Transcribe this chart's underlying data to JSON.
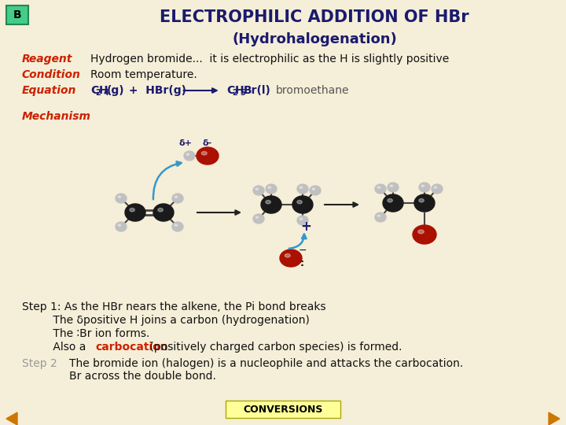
{
  "bg_color": "#f5eed8",
  "title": "ELECTROPHILIC ADDITION OF HBr",
  "subtitle": "(Hydrohalogenation)",
  "title_color": "#1a1a6e",
  "box_label": "B",
  "box_bg": "#44cc88",
  "box_fg": "#000000",
  "box_border": "#228855",
  "label_color": "#cc2200",
  "reagent_label": "Reagent",
  "reagent_text": "Hydrogen bromide...  it is electrophilic as the H is slightly positive",
  "condition_label": "Condition",
  "condition_text": "Room temperature.",
  "equation_label": "Equation",
  "mechanism_label": "Mechanism",
  "step1_line1": "Step 1: As the HBr nears the alkene, the Pi bond breaks",
  "step1_line2": "         The δpositive H joins a carbon (hydrogenation)",
  "step1_line3": "         The ∶Br ion forms.",
  "step1_line4_pre": "         Also a ",
  "step1_line4_red": "carbocation",
  "step1_line4_post": " (positively charged carbon species) is formed.",
  "step2_label": "Step 2",
  "step2_line1": "The bromide ion (halogen) is a nucleophile and attacks the carbocation.",
  "step2_line2": "Br across the double bond.",
  "conversions_label": "CONVERSIONS",
  "conversions_bg": "#ffff99",
  "text_color": "#111111",
  "dark_blue": "#1a1a6e",
  "gray_H": "#bbbbbb",
  "black_C": "#111111",
  "red_Br": "#aa1100",
  "blue_arrow": "#3399cc"
}
